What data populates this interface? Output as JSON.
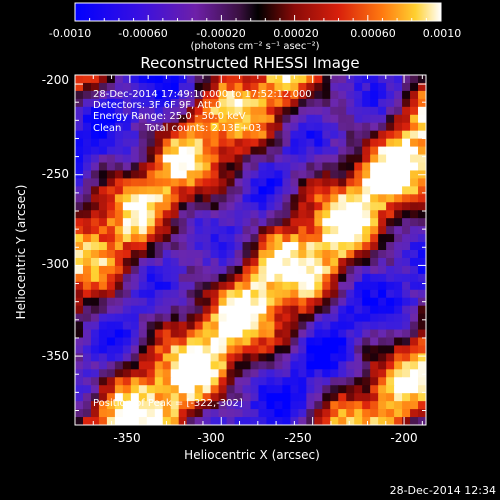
{
  "colorbar": {
    "tick_labels": [
      "-0.0010",
      "-0.00060",
      "-0.00020",
      "0.00020",
      "0.00060",
      "0.0010"
    ],
    "unit_label": "(photons cm⁻² s⁻¹ asec⁻²)",
    "range": [
      -0.001,
      0.001
    ],
    "colors": {
      "low": "#0000ff",
      "mid_low": "#6e20a8",
      "mid": "#000000",
      "mid_high": "#d8200c",
      "high": "#ffffff"
    }
  },
  "plot": {
    "title": "Reconstructed RHESSI Image",
    "xlabel": "Heliocentric X (arcsec)",
    "ylabel": "Heliocentric Y (arcsec)",
    "x_ticks": [
      "-350",
      "-300",
      "-250",
      "-200"
    ],
    "y_ticks": [
      "-200",
      "-250",
      "-300",
      "-350"
    ],
    "xlim": [
      -380,
      -188
    ],
    "ylim": [
      -388,
      -195
    ]
  },
  "annotations": {
    "time": "28-Dec-2014 17:49:10.000 to 17:52:12.000",
    "detectors": "Detectors: 3F 6F 9F, Att 0",
    "energy": "Energy Range: 25.0 - 50.0 keV",
    "method": "Clean",
    "counts": "Total counts: 2.13E+03",
    "peak": "Position of Peak = [-322,-302]"
  },
  "footer": {
    "timestamp": "28-Dec-2014 12:34"
  }
}
